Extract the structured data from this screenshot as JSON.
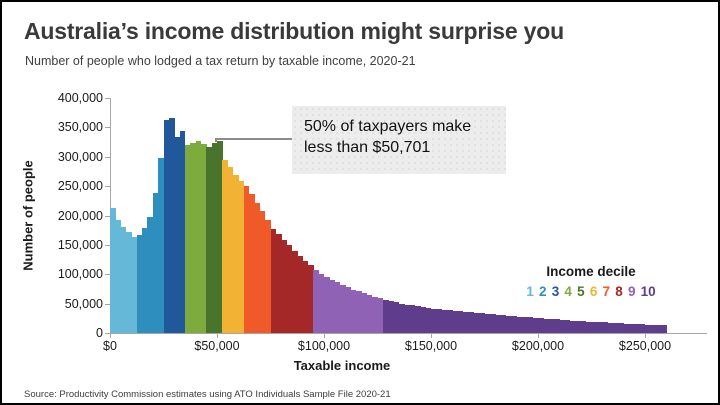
{
  "header": {
    "title": "Australia’s income distribution might surprise you",
    "subtitle": "Number of people who lodged a tax return by taxable income, 2020-21"
  },
  "chart_data": {
    "type": "bar",
    "variant": "histogram",
    "title": "Australia’s income distribution might surprise you",
    "subtitle": "Number of people who lodged a tax return by taxable income, 2020-21",
    "xlabel": "Taxable income",
    "ylabel": "Number of people",
    "bin_width_dollars": 2500,
    "x_start_dollars": 0,
    "xlim": [
      0,
      260000
    ],
    "ylim": [
      0,
      400000
    ],
    "grid": false,
    "y_ticks": [
      {
        "value": 0,
        "label": "0"
      },
      {
        "value": 50000,
        "label": "50,000"
      },
      {
        "value": 100000,
        "label": "100,000"
      },
      {
        "value": 150000,
        "label": "150,000"
      },
      {
        "value": 200000,
        "label": "200,000"
      },
      {
        "value": 250000,
        "label": "250,000"
      },
      {
        "value": 300000,
        "label": "300,000"
      },
      {
        "value": 350000,
        "label": "350,000"
      },
      {
        "value": 400000,
        "label": "400,000"
      }
    ],
    "x_ticks": [
      {
        "value": 0,
        "label": "$0"
      },
      {
        "value": 50000,
        "label": "$50,000"
      },
      {
        "value": 100000,
        "label": "$100,000"
      },
      {
        "value": 150000,
        "label": "$150,000"
      },
      {
        "value": 200000,
        "label": "$200,000"
      },
      {
        "value": 250000,
        "label": "$250,000"
      }
    ],
    "series": [
      {
        "name": "Decile 1",
        "color": "#66b8d9",
        "values": [
          213000,
          193000,
          181000,
          172000,
          164000
        ]
      },
      {
        "name": "Decile 2",
        "color": "#2e8fbe",
        "values": [
          167000,
          178000,
          198000,
          238000,
          298000
        ]
      },
      {
        "name": "Decile 3",
        "color": "#21579b",
        "values": [
          362000,
          366000,
          334000,
          344000
        ]
      },
      {
        "name": "Decile 4",
        "color": "#7dab3d",
        "values": [
          320000,
          324000,
          326000,
          321000
        ]
      },
      {
        "name": "Decile 5",
        "color": "#49742c",
        "values": [
          317000,
          323000,
          326000
        ]
      },
      {
        "name": "Decile 6",
        "color": "#f2b233",
        "values": [
          294000,
          282000,
          269000,
          258000
        ]
      },
      {
        "name": "Decile 7",
        "color": "#f05a28",
        "values": [
          251000,
          237000,
          222000,
          207000,
          193000
        ]
      },
      {
        "name": "Decile 8",
        "color": "#a52828",
        "values": [
          177000,
          168000,
          158000,
          149000,
          140000,
          131000,
          123000,
          115000
        ]
      },
      {
        "name": "Decile 9",
        "color": "#8f62b5",
        "values": [
          107000,
          101000,
          96000,
          91000,
          86000,
          82000,
          78000,
          74000,
          71000,
          68000,
          65000,
          62000,
          59000
        ]
      },
      {
        "name": "Decile 10",
        "color": "#5e3d8c",
        "values": [
          56000,
          54000,
          52000,
          50000,
          48500,
          47000,
          45500,
          44000,
          42500,
          41500,
          40500,
          39500,
          39000,
          38000,
          37000,
          36000,
          35000,
          34500,
          33500,
          32500,
          32000,
          31000,
          30000,
          29500,
          28500,
          28000,
          27000,
          26500,
          25500,
          25000,
          24000,
          23500,
          23000,
          22000,
          21500,
          21000,
          20500,
          20000,
          19500,
          19000,
          18500,
          18000,
          17500,
          17000,
          16500,
          16000,
          15500,
          15000,
          14500,
          14000,
          13500,
          12800,
          13200
        ]
      }
    ],
    "legend": {
      "title": "Income decile",
      "position": "right-middle",
      "items": [
        {
          "label": "1",
          "color": "#66b8d9"
        },
        {
          "label": "2",
          "color": "#2e8fbe"
        },
        {
          "label": "3",
          "color": "#21579b"
        },
        {
          "label": "4",
          "color": "#7dab3d"
        },
        {
          "label": "5",
          "color": "#49742c"
        },
        {
          "label": "6",
          "color": "#f2b233"
        },
        {
          "label": "7",
          "color": "#f05a28"
        },
        {
          "label": "8",
          "color": "#a52828"
        },
        {
          "label": "9",
          "color": "#8f62b5"
        },
        {
          "label": "10",
          "color": "#5e3d8c"
        }
      ]
    },
    "annotation": {
      "line1": "50% of taxpayers make",
      "line2": "less than $50,701",
      "points_to_value": 326000
    }
  },
  "footer": {
    "source": "Source: Productivity Commission estimates using ATO Individuals Sample File 2020-21"
  }
}
